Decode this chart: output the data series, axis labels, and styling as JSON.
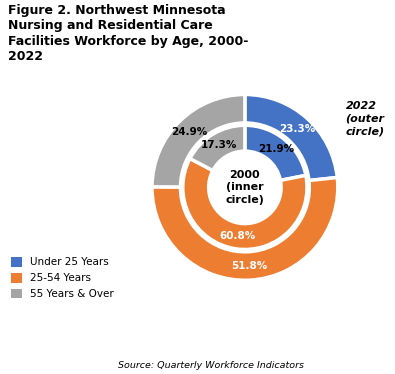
{
  "title": "Figure 2. Northwest Minnesota\nNursing and Residential Care\nFacilities Workforce by Age, 2000-\n2022",
  "source": "Source: Quarterly Workforce Indicators",
  "inner_values": [
    21.9,
    60.8,
    17.3
  ],
  "outer_values": [
    23.3,
    51.8,
    24.9
  ],
  "labels": [
    "Under 25 Years",
    "25-54 Years",
    "55 Years & Over"
  ],
  "colors": [
    "#4472C4",
    "#ED7D31",
    "#A5A5A5"
  ],
  "inner_label": "2000\n(inner\ncircle)",
  "outer_label": "2022\n(outer\ncircle)",
  "inner_pct_labels": [
    "21.9%",
    "60.8%",
    "17.3%"
  ],
  "outer_pct_labels": [
    "23.3%",
    "51.8%",
    "24.9%"
  ],
  "inner_pct_colors": [
    "black",
    "white",
    "black"
  ],
  "outer_pct_colors": [
    "white",
    "white",
    "black"
  ]
}
